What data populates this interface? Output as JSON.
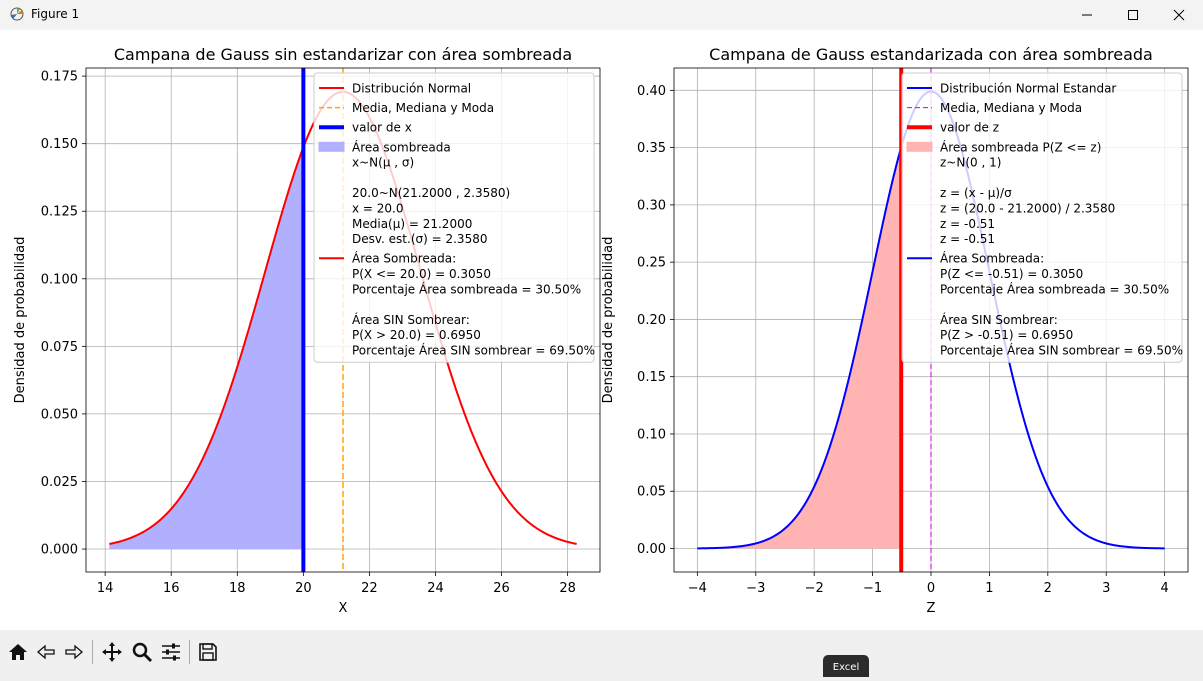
{
  "window": {
    "title": "Figure 1",
    "icons": [
      "matplotlib-app-icon",
      "minimize-icon",
      "maximize-icon",
      "close-icon"
    ]
  },
  "toolbar": {
    "buttons": [
      "home-icon",
      "back-icon",
      "forward-icon",
      "pan-icon",
      "zoom-icon",
      "configure-subplots-icon",
      "save-icon"
    ]
  },
  "taskbar_tooltip": "Excel",
  "colors": {
    "left_shade": "#b0b0ff",
    "left_curve": "#ff0000",
    "left_mean": "#ffa500",
    "left_xline": "#0000ff",
    "right_shade": "#ffb3b3",
    "right_curve": "#0000ff",
    "right_mean": "#cc00cc",
    "right_zline": "#ff0000"
  },
  "chart_data": [
    {
      "type": "line",
      "title": "Campana de Gauss sin estandarizar con área sombreada",
      "xlabel": "X",
      "ylabel": "Densidad de probabilidad",
      "mu": 21.2,
      "sigma": 2.358,
      "value": 20.0,
      "x_range": [
        14.126,
        28.274
      ],
      "xlim": [
        13.42,
        28.98
      ],
      "ylim": [
        -0.0085,
        0.178
      ],
      "xticks": [
        14,
        16,
        18,
        20,
        22,
        24,
        26,
        28
      ],
      "xtick_labels": [
        "14",
        "16",
        "18",
        "20",
        "22",
        "24",
        "26",
        "28"
      ],
      "yticks": [
        0,
        0.025,
        0.05,
        0.075,
        0.1,
        0.125,
        0.15,
        0.175
      ],
      "ytick_labels": [
        "0.000",
        "0.025",
        "0.050",
        "0.075",
        "0.100",
        "0.125",
        "0.150",
        "0.175"
      ],
      "grid": true,
      "shaded_region": "left of x",
      "legend_position": "upper right",
      "legend": [
        {
          "type": "line",
          "color": "#ff0000",
          "dash": false,
          "width": 2,
          "lines": [
            "Distribución Normal"
          ]
        },
        {
          "type": "line",
          "color": "#ffa500",
          "dash": true,
          "width": 1.5,
          "lines": [
            "Media, Mediana y Moda"
          ]
        },
        {
          "type": "line",
          "color": "#0000ff",
          "dash": false,
          "width": 4,
          "lines": [
            "valor de x"
          ]
        },
        {
          "type": "patch",
          "color": "#b0b0ff",
          "lines": [
            "Área sombreada",
            "x~N(μ , σ)",
            "",
            "20.0~N(21.2000 , 2.3580)",
            "x = 20.0",
            "Media(μ) = 21.2000",
            "Desv. est.(σ) = 2.3580"
          ]
        },
        {
          "type": "line",
          "color": "#ff0000",
          "dash": false,
          "width": 2,
          "lines": [
            "Área Sombreada:",
            "P(X <= 20.0) = 0.3050",
            "Porcentaje Área sombreada = 30.50%",
            "",
            "Área SIN Sombrear:",
            "P(X > 20.0) = 0.6950",
            "Porcentaje Área SIN sombrear = 69.50%"
          ]
        }
      ]
    },
    {
      "type": "line",
      "title": "Campana de Gauss estandarizada con área sombreada",
      "xlabel": "Z",
      "ylabel": "Densidad de probabilidad",
      "mu": 0,
      "sigma": 1,
      "value": -0.51,
      "x_range": [
        -4,
        4
      ],
      "xlim": [
        -4.4,
        4.4
      ],
      "ylim": [
        -0.0205,
        0.4195
      ],
      "xticks": [
        -4,
        -3,
        -2,
        -1,
        0,
        1,
        2,
        3,
        4
      ],
      "xtick_labels": [
        "−4",
        "−3",
        "−2",
        "−1",
        "0",
        "1",
        "2",
        "3",
        "4"
      ],
      "yticks": [
        0,
        0.05,
        0.1,
        0.15,
        0.2,
        0.25,
        0.3,
        0.35,
        0.4
      ],
      "ytick_labels": [
        "0.00",
        "0.05",
        "0.10",
        "0.15",
        "0.20",
        "0.25",
        "0.30",
        "0.35",
        "0.40"
      ],
      "grid": true,
      "shaded_region": "left of z",
      "legend_position": "upper right",
      "legend": [
        {
          "type": "line",
          "color": "#0000ff",
          "dash": false,
          "width": 2,
          "lines": [
            "Distribución Normal Estandar"
          ]
        },
        {
          "type": "line",
          "color": "#cc00cc",
          "dash": true,
          "width": 1,
          "lines": [
            "Media, Mediana y Moda"
          ]
        },
        {
          "type": "line",
          "color": "#ff0000",
          "dash": false,
          "width": 4,
          "lines": [
            "valor de z"
          ]
        },
        {
          "type": "patch",
          "color": "#ffb3b3",
          "lines": [
            "Área sombreada P(Z <= z)",
            "z~N(0 , 1)",
            "",
            "z = (x - μ)/σ",
            "z = (20.0 - 21.2000) / 2.3580",
            "z = -0.51",
            "z = -0.51"
          ]
        },
        {
          "type": "line",
          "color": "#0000ff",
          "dash": false,
          "width": 2,
          "lines": [
            "Área Sombreada:",
            "P(Z <= -0.51) = 0.3050",
            "Porcentaje Área sombreada = 30.50%",
            "",
            "Área SIN Sombrear:",
            "P(Z > -0.51) = 0.6950",
            "Porcentaje Área SIN sombrear = 69.50%"
          ]
        }
      ]
    }
  ]
}
